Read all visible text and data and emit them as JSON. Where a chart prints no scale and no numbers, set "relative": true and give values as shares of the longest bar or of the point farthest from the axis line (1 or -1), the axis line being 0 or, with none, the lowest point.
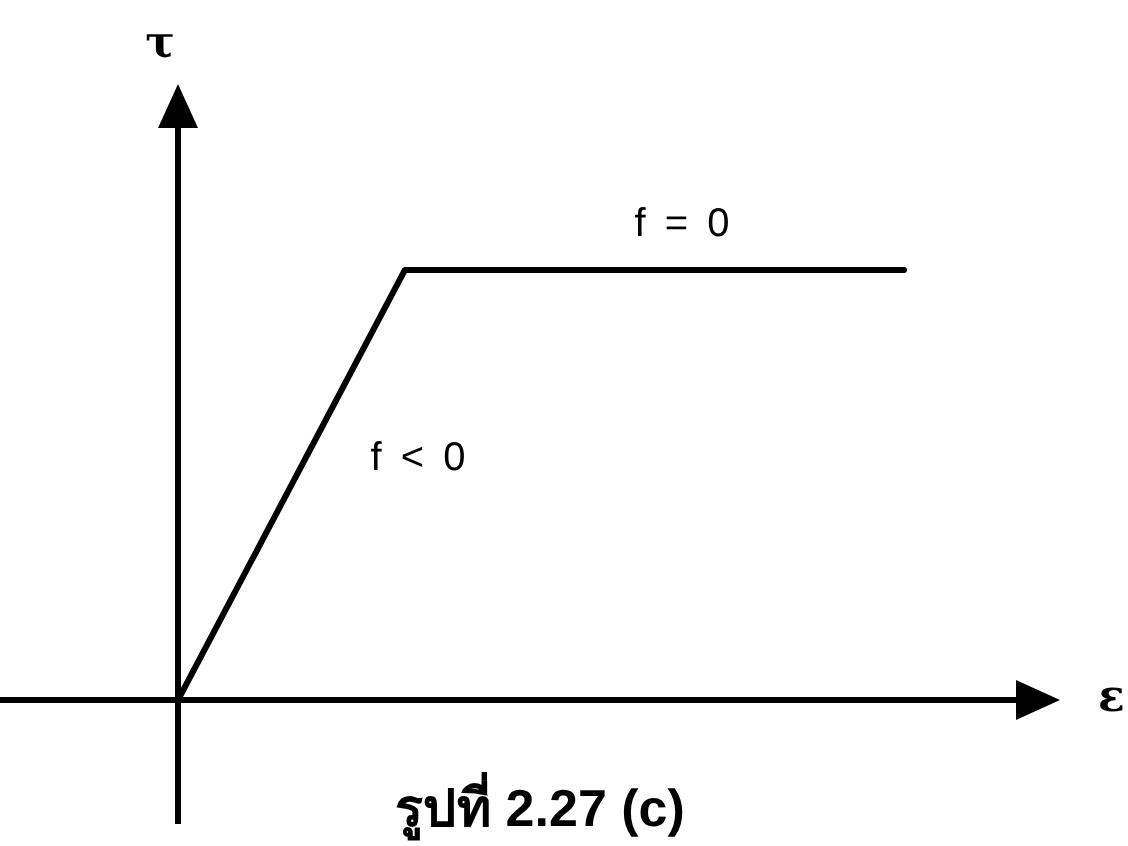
{
  "chart_data": {
    "type": "line",
    "xlabel": "ε",
    "ylabel": "τ",
    "relative": true,
    "categories": [
      null,
      null,
      null,
      null,
      null,
      null,
      null,
      null,
      null,
      null,
      null,
      null,
      null,
      null,
      null,
      null,
      null
    ],
    "series": [
      {
        "color": "#000000",
        "values": [
          0,
          0.2,
          0.4,
          0.6,
          0.8,
          1,
          1,
          1,
          1,
          1,
          1,
          1,
          1,
          1,
          1,
          1,
          1
        ]
      }
    ],
    "marker": "none",
    "annotations": [
      "f = 0",
      "f < 0",
      "รูปที่ 2.27 (c)"
    ]
  }
}
